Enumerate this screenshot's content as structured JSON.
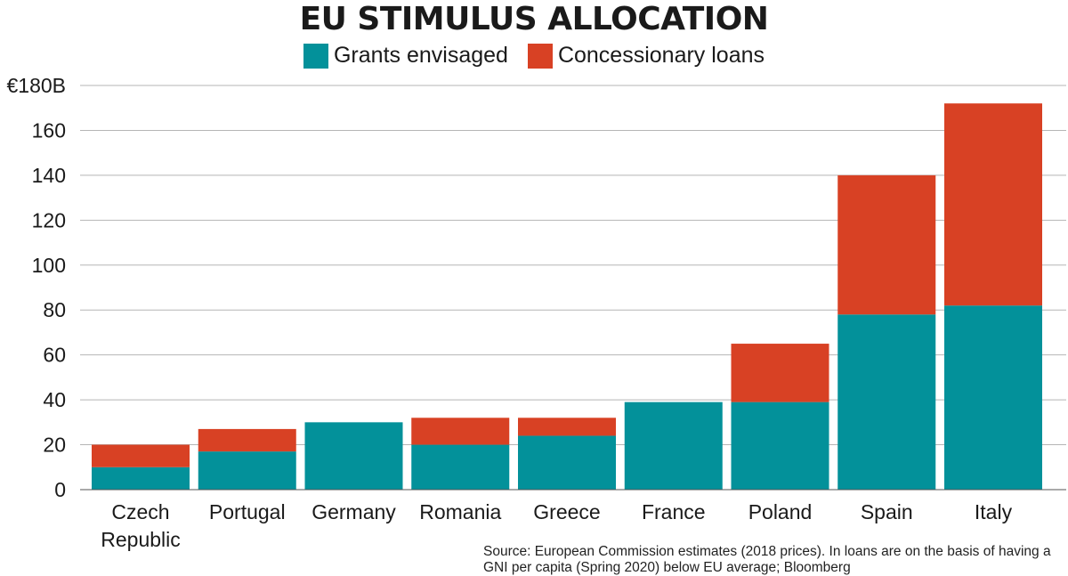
{
  "chart_data": {
    "type": "bar",
    "stacked": true,
    "title": "EU STIMULUS ALLOCATION",
    "categories": [
      [
        "Czech",
        "Republic"
      ],
      [
        "Portugal"
      ],
      [
        "Germany"
      ],
      [
        "Romania"
      ],
      [
        "Greece"
      ],
      [
        "France"
      ],
      [
        "Poland"
      ],
      [
        "Spain"
      ],
      [
        "Italy"
      ]
    ],
    "series": [
      {
        "name": "Grants envisaged",
        "color": "#03919a",
        "values": [
          10,
          17,
          30,
          20,
          24,
          39,
          39,
          78,
          82
        ]
      },
      {
        "name": "Concessionary loans",
        "color": "#d84124",
        "values": [
          10,
          10,
          0,
          12,
          8,
          0,
          26,
          62,
          90
        ]
      }
    ],
    "ylim": [
      0,
      180
    ],
    "yticks": [
      0,
      20,
      40,
      60,
      80,
      100,
      120,
      140,
      160,
      180
    ],
    "ytick_labels": [
      "0",
      "20",
      "40",
      "60",
      "80",
      "100",
      "120",
      "140",
      "160",
      "€180B"
    ],
    "grid": true,
    "legend_position": "top-center",
    "source": "Source: European Commission estimates (2018 prices). In loans are on the basis of having a GNI per capita (Spring 2020) below EU average; Bloomberg"
  }
}
